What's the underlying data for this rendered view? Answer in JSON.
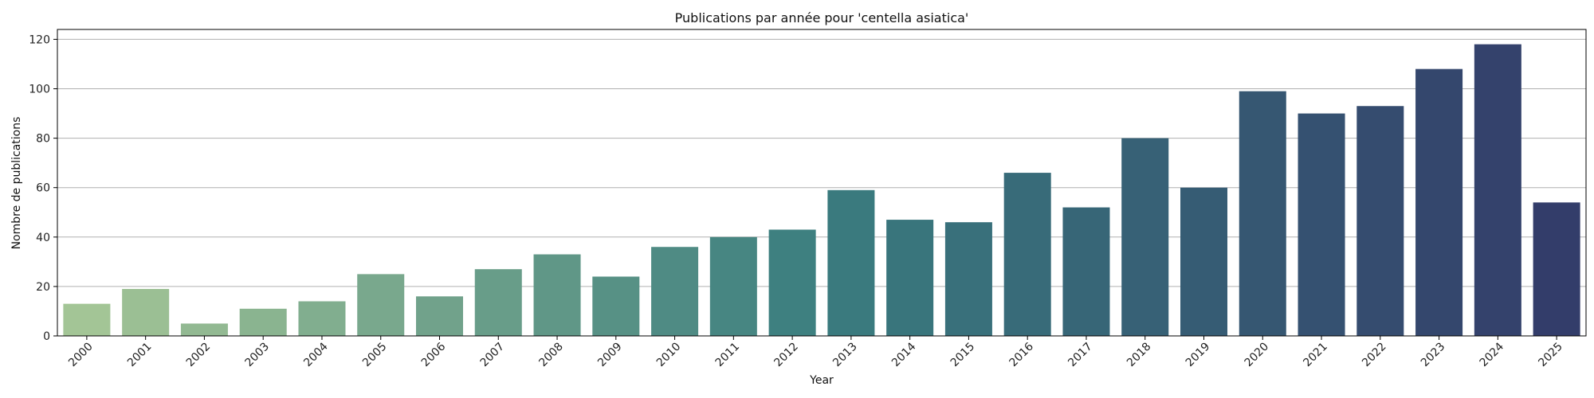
{
  "chart_data": {
    "type": "bar",
    "title": "Publications par année pour 'centella asiatica'",
    "xlabel": "Year",
    "ylabel": "Nombre de publications",
    "categories": [
      "2000",
      "2001",
      "2002",
      "2003",
      "2004",
      "2005",
      "2006",
      "2007",
      "2008",
      "2009",
      "2010",
      "2011",
      "2012",
      "2013",
      "2014",
      "2015",
      "2016",
      "2017",
      "2018",
      "2019",
      "2020",
      "2021",
      "2022",
      "2023",
      "2024",
      "2025"
    ],
    "values": [
      13,
      19,
      5,
      11,
      14,
      25,
      16,
      27,
      33,
      24,
      36,
      40,
      43,
      59,
      47,
      46,
      66,
      52,
      80,
      60,
      99,
      90,
      93,
      108,
      118,
      54
    ],
    "ylim": [
      0,
      124
    ],
    "yticks": [
      0,
      20,
      40,
      60,
      80,
      100,
      120
    ],
    "grid": "y",
    "x_tick_rotation": -45,
    "palette": "crest",
    "colors": {
      "start": "#a3c596",
      "mid": "#3a7d7f",
      "end": "#333d6a",
      "grid": "#b0b0b0",
      "axis": "#000000"
    }
  }
}
